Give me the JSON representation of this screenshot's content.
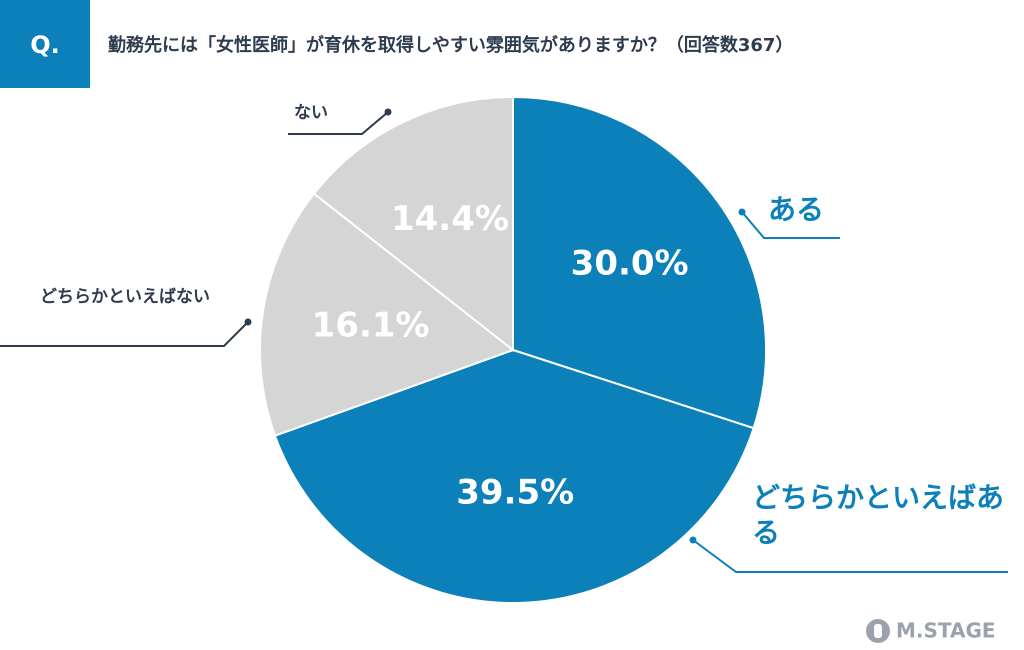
{
  "badge": "Q.",
  "logo": "M.STAGE",
  "chart_data": {
    "type": "pie",
    "title": "勤務先には「女性医師」が育休を取得しやすい雰囲気がありますか？（回答数367）",
    "categories": [
      "ある",
      "どちらかといえばある",
      "どちらかといえばない",
      "ない"
    ],
    "values": [
      30.0,
      39.5,
      16.1,
      14.4
    ],
    "value_labels": [
      "30.0%",
      "39.5%",
      "16.1%",
      "14.4%"
    ],
    "colors": [
      "#0b80b9",
      "#0b80b9",
      "#d5d5d5",
      "#d5d5d5"
    ]
  }
}
